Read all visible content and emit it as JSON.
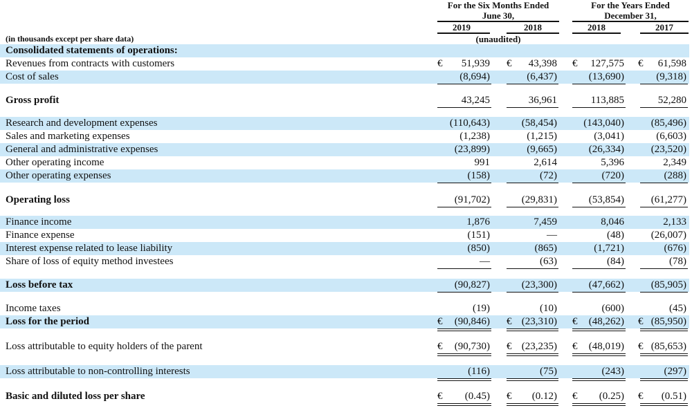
{
  "header": {
    "six_months": "For the Six Months Ended",
    "six_months_date": "June 30,",
    "years": "For the Years Ended",
    "years_date": "December 31,",
    "columns": [
      "2019",
      "2018",
      "2018",
      "2017"
    ],
    "unaudited": "(unaudited)",
    "units": "(in thousands except per share data)"
  },
  "rows": [
    {
      "label": "Consolidated statements of operations:",
      "bold": true,
      "shade": true,
      "values": [
        "",
        "",
        "",
        ""
      ]
    },
    {
      "label": "Revenues from contracts with customers",
      "values": [
        "51,939",
        "43,398",
        "127,575",
        "61,598"
      ],
      "euro": [
        true,
        true,
        true,
        true
      ]
    },
    {
      "label": "Cost of sales",
      "shade": true,
      "values": [
        "(8,694)",
        "(6,437)",
        "(13,690)",
        "(9,318)"
      ],
      "under": "single"
    },
    {
      "label": "Gross profit",
      "bold": true,
      "values": [
        "43,245",
        "36,961",
        "113,885",
        "52,280"
      ],
      "under": "single"
    },
    {
      "label": "Research and development expenses",
      "shade": true,
      "values": [
        "(110,643)",
        "(58,454)",
        "(143,040)",
        "(85,496)"
      ]
    },
    {
      "label": "Sales and marketing expenses",
      "values": [
        "(1,238)",
        "(1,215)",
        "(3,041)",
        "(6,603)"
      ]
    },
    {
      "label": "General and administrative expenses",
      "shade": true,
      "values": [
        "(23,899)",
        "(9,665)",
        "(26,334)",
        "(23,520)"
      ]
    },
    {
      "label": "Other operating income",
      "values": [
        "991",
        "2,614",
        "5,396",
        "2,349"
      ]
    },
    {
      "label": "Other operating expenses",
      "shade": true,
      "values": [
        "(158)",
        "(72)",
        "(720)",
        "(288)"
      ],
      "under": "single"
    },
    {
      "label": "Operating loss",
      "bold": true,
      "values": [
        "(91,702)",
        "(29,831)",
        "(53,854)",
        "(61,277)"
      ],
      "under": "single"
    },
    {
      "label": "Finance income",
      "shade": true,
      "values": [
        "1,876",
        "7,459",
        "8,046",
        "2,133"
      ]
    },
    {
      "label": "Finance expense",
      "values": [
        "(151)",
        "—",
        "(48)",
        "(26,007)"
      ]
    },
    {
      "label": "Interest expense related to lease liability",
      "shade": true,
      "values": [
        "(850)",
        "(865)",
        "(1,721)",
        "(676)"
      ]
    },
    {
      "label": "Share of loss of equity method investees",
      "values": [
        "—",
        "(63)",
        "(84)",
        "(78)"
      ],
      "under": "single"
    },
    {
      "label": "Loss before tax",
      "bold": true,
      "shade": true,
      "values": [
        "(90,827)",
        "(23,300)",
        "(47,662)",
        "(85,905)"
      ],
      "under": "single"
    },
    {
      "label": "Income taxes",
      "values": [
        "(19)",
        "(10)",
        "(600)",
        "(45)"
      ],
      "under": "single"
    },
    {
      "label": "Loss for the period",
      "bold": true,
      "shade": true,
      "values": [
        "(90,846)",
        "(23,310)",
        "(48,262)",
        "(85,950)"
      ],
      "euro": [
        true,
        true,
        true,
        true
      ],
      "under": "double"
    },
    {
      "label": "Loss attributable to equity holders of the parent",
      "values": [
        "(90,730)",
        "(23,235)",
        "(48,019)",
        "(85,653)"
      ],
      "euro": [
        true,
        true,
        true,
        true
      ],
      "under": "double"
    },
    {
      "label": "Loss attributable to non-controlling interests",
      "shade": true,
      "values": [
        "(116)",
        "(75)",
        "(243)",
        "(297)"
      ],
      "under": "double"
    },
    {
      "label": "Basic and diluted loss per share",
      "bold": true,
      "values": [
        "(0.45)",
        "(0.12)",
        "(0.25)",
        "(0.51)"
      ],
      "euro": [
        true,
        true,
        true,
        true
      ],
      "under": "double"
    }
  ],
  "currency_symbol": "€"
}
